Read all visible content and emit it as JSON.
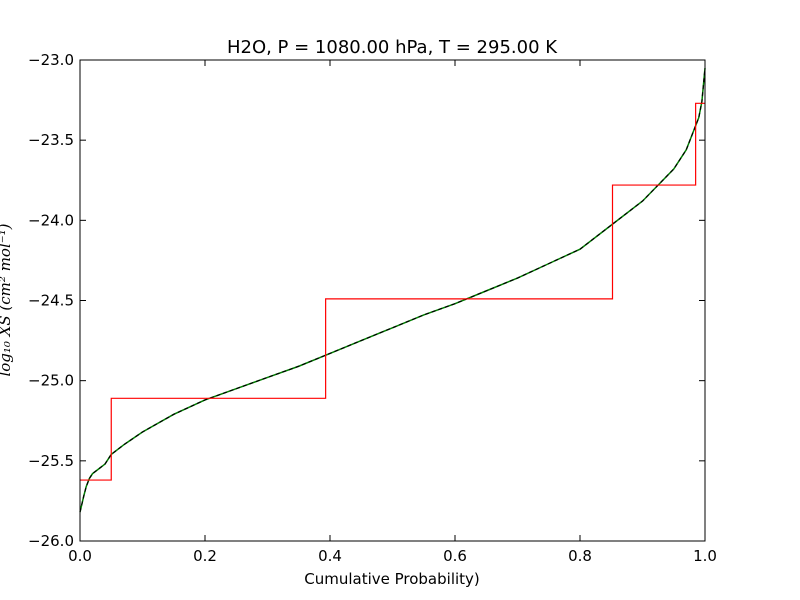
{
  "chart_data": {
    "type": "line",
    "title": "H2O, P = 1080.00 hPa, T = 295.00 K",
    "xlabel": "Cumulative Probability)",
    "ylabel": "log₁₀ XS (cm² mol⁻¹)",
    "xlim": [
      0.0,
      1.0
    ],
    "ylim": [
      -26.0,
      -23.0
    ],
    "xticks": [
      0.0,
      0.2,
      0.4,
      0.6,
      0.8,
      1.0
    ],
    "xtick_labels": [
      "0.0",
      "0.2",
      "0.4",
      "0.6",
      "0.8",
      "1.0"
    ],
    "yticks": [
      -26.0,
      -25.5,
      -25.0,
      -24.5,
      -24.0,
      -23.5,
      -23.0
    ],
    "ytick_labels": [
      "−26.0",
      "−25.5",
      "−25.0",
      "−24.5",
      "−24.0",
      "−23.5",
      "−23.0"
    ],
    "grid": false,
    "legend": "none",
    "series": [
      {
        "kind": "line",
        "color": "#008000",
        "x": [
          0.0,
          0.003,
          0.006,
          0.01,
          0.015,
          0.02,
          0.03,
          0.04,
          0.05,
          0.07,
          0.1,
          0.15,
          0.2,
          0.25,
          0.3,
          0.35,
          0.4,
          0.45,
          0.5,
          0.55,
          0.6,
          0.65,
          0.7,
          0.75,
          0.8,
          0.85,
          0.9,
          0.93,
          0.95,
          0.97,
          0.98,
          0.99,
          0.995,
          1.0
        ],
        "y": [
          -25.82,
          -25.77,
          -25.72,
          -25.66,
          -25.61,
          -25.58,
          -25.55,
          -25.52,
          -25.46,
          -25.4,
          -25.32,
          -25.21,
          -25.12,
          -25.05,
          -24.98,
          -24.91,
          -24.83,
          -24.75,
          -24.67,
          -24.59,
          -24.52,
          -24.44,
          -24.36,
          -24.27,
          -24.18,
          -24.03,
          -23.88,
          -23.76,
          -23.68,
          -23.56,
          -23.46,
          -23.36,
          -23.26,
          -23.05
        ]
      },
      {
        "kind": "line",
        "color": "#000000",
        "dashed": true,
        "x": [
          0.0,
          0.003,
          0.006,
          0.01,
          0.015,
          0.02,
          0.03,
          0.04,
          0.05,
          0.07,
          0.1,
          0.15,
          0.2,
          0.25,
          0.3,
          0.35,
          0.4,
          0.45,
          0.5,
          0.55,
          0.6,
          0.65,
          0.7,
          0.75,
          0.8,
          0.85,
          0.9,
          0.93,
          0.95,
          0.97,
          0.98,
          0.99,
          0.995,
          1.0
        ],
        "y": [
          -25.82,
          -25.77,
          -25.72,
          -25.66,
          -25.61,
          -25.58,
          -25.55,
          -25.52,
          -25.46,
          -25.4,
          -25.32,
          -25.21,
          -25.12,
          -25.05,
          -24.98,
          -24.91,
          -24.83,
          -24.75,
          -24.67,
          -24.59,
          -24.52,
          -24.44,
          -24.36,
          -24.27,
          -24.18,
          -24.03,
          -23.88,
          -23.76,
          -23.68,
          -23.56,
          -23.46,
          -23.36,
          -23.26,
          -23.05
        ]
      },
      {
        "kind": "step",
        "color": "#ff0000",
        "edges": [
          0.0,
          0.05,
          0.393,
          0.852,
          0.985,
          1.0
        ],
        "levels": [
          -25.62,
          -25.11,
          -24.49,
          -23.78,
          -23.27
        ]
      }
    ]
  }
}
